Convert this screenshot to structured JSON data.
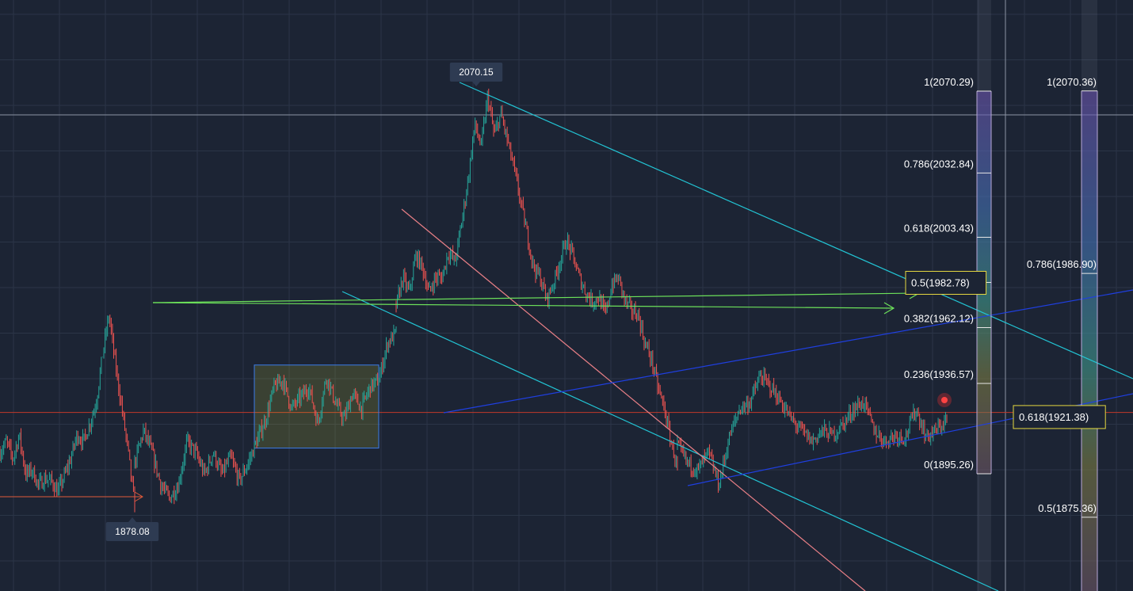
{
  "chart_data": {
    "type": "candlestick",
    "price_range_visible": [
      1847,
      2097
    ],
    "grid": true,
    "colors": {
      "background": "#1c2434",
      "grid": "#2b3547",
      "up": "#26a69a",
      "down": "#ef5350",
      "channel_cyan": "#22c4d4",
      "channel_blue": "#1f3fe0",
      "trend_pink": "#e87f86",
      "arrow_green": "#6ce05a",
      "current_price": "#c0392b",
      "highlight_box": "#c8c830",
      "fib_label_box": "#e5d740"
    },
    "price_markers": {
      "high": "2070.15",
      "low": "1878.08"
    },
    "current_price_level": 1923.3,
    "consolidation_zone": {
      "high": 1945,
      "low": 1907
    },
    "price_path": [
      [
        1905,
        1910,
        1902,
        1913,
        1895,
        1897,
        1890,
        1893,
        1892,
        1887,
        1894,
        1902,
        1913,
        1910,
        1918,
        1928,
        1950,
        1968,
        1945,
        1925,
        1905,
        1880
      ],
      [
        1900,
        1915,
        1905,
        1890,
        1884,
        1890,
        1910,
        1905,
        1895,
        1905,
        1895,
        1903,
        1892,
        1900,
        1910,
        1920,
        1935,
        1938,
        1925,
        1930,
        1935,
        1918,
        1940,
        1928,
        1920,
        1932,
        1925,
        1935,
        1938,
        1955,
        1960
      ],
      [
        1972,
        1985,
        1978,
        1995,
        1990,
        1978,
        1985,
        1985,
        1997,
        1992,
        2010,
        2030,
        2055,
        2045,
        2068,
        2050,
        2060,
        2048,
        2035,
        2020,
        2005,
        1990,
        1985,
        1975,
        1982,
        1992,
        2002,
        1995,
        1985,
        1978,
        1974,
        1976,
        1968,
        1982,
        1985,
        1974,
        1970,
        1968,
        1955,
        1948,
        1935,
        1925,
        1910,
        1898
      ],
      [
        1908,
        1900,
        1897,
        1905,
        1890,
        1912,
        1925,
        1928,
        1940,
        1935,
        1928,
        1920,
        1915,
        1910,
        1915,
        1913,
        1918,
        1925,
        1928,
        1915,
        1910,
        1913,
        1912,
        1925,
        1912,
        1915,
        1920
      ]
    ],
    "fibonacci": [
      {
        "levels": [
          {
            "label": "1(2070.29)",
            "value": 2070.29
          },
          {
            "label": "0.786(2032.84)",
            "value": 2032.84
          },
          {
            "label": "0.618(2003.43)",
            "value": 2003.43
          },
          {
            "label": "0.5(1982.78)",
            "value": 1982.78,
            "highlighted": true
          },
          {
            "label": "0.382(1962.12)",
            "value": 1962.12
          },
          {
            "label": "0.236(1936.57)",
            "value": 1936.57
          },
          {
            "label": "0(1895.26)",
            "value": 1895.26
          }
        ]
      },
      {
        "levels": [
          {
            "label": "1(2070.36)",
            "value": 2070.36
          },
          {
            "label": "0.786(1986.90)",
            "value": 1986.9
          },
          {
            "label": "0.618(1921.38)",
            "value": 1921.38,
            "highlighted": true
          },
          {
            "label": "0.5(1875.36)",
            "value": 1875.36
          }
        ]
      }
    ]
  }
}
